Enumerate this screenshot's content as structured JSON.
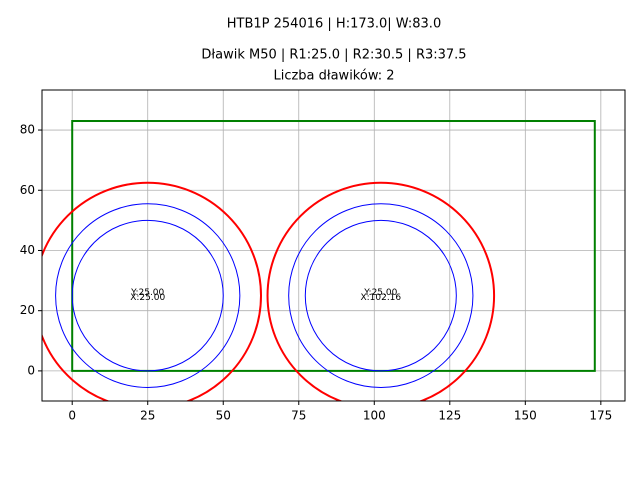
{
  "chart_data": {
    "type": "shapes",
    "title": "HTB1P 254016 | H:173.0| W:83.0",
    "subtitle": "Dławik M50 | R1:25.0 | R2:30.5 | R3:37.5",
    "subtitle2": "Liczba dławików: 2",
    "xlim": [
      -10,
      183
    ],
    "ylim": [
      -10,
      93.3
    ],
    "xticks": [
      0,
      25,
      50,
      75,
      100,
      125,
      150,
      175
    ],
    "yticks": [
      0,
      20,
      40,
      60,
      80
    ],
    "grid": true,
    "rectangle": {
      "x0": 0,
      "y0": 0,
      "x1": 173,
      "y1": 83,
      "color": "#008000"
    },
    "rings": [
      {
        "r": 25,
        "color": "#0000ff"
      },
      {
        "r": 30.5,
        "color": "#0000ff"
      },
      {
        "r": 37.5,
        "color": "#ff0000"
      }
    ],
    "circles": [
      {
        "x": 25,
        "y": 25,
        "label_y": "Y:25.00",
        "label_x": "X:25.00"
      },
      {
        "x": 102.16,
        "y": 25,
        "label_y": "Y:25.00",
        "label_x": "X:102.16"
      }
    ]
  }
}
